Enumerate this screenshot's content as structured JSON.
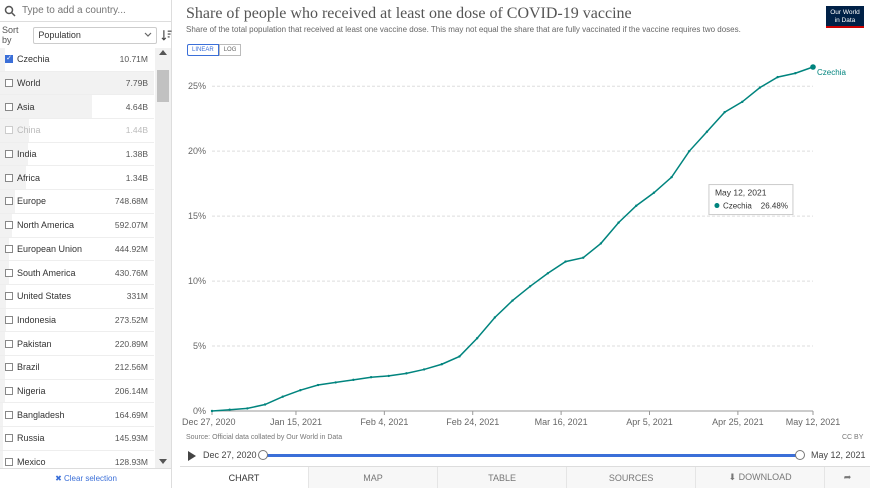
{
  "search": {
    "placeholder": "Type to add a country..."
  },
  "sort": {
    "label": "Sort by",
    "selected": "Population"
  },
  "countries": [
    {
      "name": "Czechia",
      "value": "10.71M",
      "checked": true,
      "dim": false,
      "share": 0.03
    },
    {
      "name": "World",
      "value": "7.79B",
      "checked": false,
      "dim": false,
      "share": 1.0
    },
    {
      "name": "Asia",
      "value": "4.64B",
      "checked": false,
      "dim": false,
      "share": 0.6
    },
    {
      "name": "China",
      "value": "1.44B",
      "checked": false,
      "dim": true,
      "share": 0.19
    },
    {
      "name": "India",
      "value": "1.38B",
      "checked": false,
      "dim": false,
      "share": 0.18
    },
    {
      "name": "Africa",
      "value": "1.34B",
      "checked": false,
      "dim": false,
      "share": 0.17
    },
    {
      "name": "Europe",
      "value": "748.68M",
      "checked": false,
      "dim": false,
      "share": 0.1
    },
    {
      "name": "North America",
      "value": "592.07M",
      "checked": false,
      "dim": false,
      "share": 0.08
    },
    {
      "name": "European Union",
      "value": "444.92M",
      "checked": false,
      "dim": false,
      "share": 0.06
    },
    {
      "name": "South America",
      "value": "430.76M",
      "checked": false,
      "dim": false,
      "share": 0.06
    },
    {
      "name": "United States",
      "value": "331M",
      "checked": false,
      "dim": false,
      "share": 0.04
    },
    {
      "name": "Indonesia",
      "value": "273.52M",
      "checked": false,
      "dim": false,
      "share": 0.04
    },
    {
      "name": "Pakistan",
      "value": "220.89M",
      "checked": false,
      "dim": false,
      "share": 0.03
    },
    {
      "name": "Brazil",
      "value": "212.56M",
      "checked": false,
      "dim": false,
      "share": 0.03
    },
    {
      "name": "Nigeria",
      "value": "206.14M",
      "checked": false,
      "dim": false,
      "share": 0.03
    },
    {
      "name": "Bangladesh",
      "value": "164.69M",
      "checked": false,
      "dim": false,
      "share": 0.02
    },
    {
      "name": "Russia",
      "value": "145.93M",
      "checked": false,
      "dim": false,
      "share": 0.02
    },
    {
      "name": "Mexico",
      "value": "128.93M",
      "checked": false,
      "dim": false,
      "share": 0.02
    }
  ],
  "clear_label": "✖ Clear selection",
  "header": {
    "title": "Share of people who received at least one dose of COVID-19 vaccine",
    "subtitle": "Share of the total population that received at least one vaccine dose. This may not equal the share that are fully vaccinated if the vaccine requires two doses.",
    "logo_line1": "Our World",
    "logo_line2": "in Data",
    "linear_label": "LINEAR",
    "log_label": "LOG"
  },
  "chart_data": {
    "type": "line",
    "title": "Share of people who received at least one dose of COVID-19 vaccine",
    "ylim": [
      0,
      26.48
    ],
    "yticks": [
      0,
      5,
      10,
      15,
      20,
      25
    ],
    "ytick_labels": [
      "0%",
      "5%",
      "10%",
      "15%",
      "20%",
      "25%"
    ],
    "xlim": [
      0,
      136
    ],
    "xticks": [
      0,
      19,
      39,
      59,
      79,
      99,
      119,
      136
    ],
    "xtick_labels": [
      "Dec 27, 2020",
      "Jan 15, 2021",
      "Feb 4, 2021",
      "Feb 24, 2021",
      "Mar 16, 2021",
      "Apr 5, 2021",
      "Apr 25, 2021",
      "May 12, 2021"
    ],
    "series": [
      {
        "name": "Czechia",
        "color": "#00847e",
        "x": [
          0,
          4,
          8,
          12,
          16,
          20,
          24,
          28,
          32,
          36,
          40,
          44,
          48,
          52,
          56,
          60,
          64,
          68,
          72,
          76,
          80,
          84,
          88,
          92,
          96,
          100,
          104,
          108,
          112,
          116,
          120,
          124,
          128,
          132,
          136
        ],
        "values": [
          0.0,
          0.1,
          0.2,
          0.5,
          1.1,
          1.6,
          2.0,
          2.2,
          2.4,
          2.6,
          2.7,
          2.9,
          3.2,
          3.6,
          4.2,
          5.6,
          7.2,
          8.5,
          9.6,
          10.6,
          11.5,
          11.8,
          12.9,
          14.5,
          15.8,
          16.8,
          18.0,
          20.0,
          21.5,
          23.0,
          23.8,
          24.9,
          25.7,
          26.0,
          26.48
        ]
      }
    ],
    "end_label": "Czechia",
    "tooltip": {
      "date": "May 12, 2021",
      "series": "Czechia",
      "value": "26.48%",
      "x": 112,
      "y": 17.2
    }
  },
  "footer": {
    "source": "Source: Official data collated by Our World in Data",
    "license": "CC BY"
  },
  "timeline": {
    "start": "Dec 27, 2020",
    "end": "May 12, 2021"
  },
  "tabs": [
    {
      "id": "chart",
      "label": "CHART"
    },
    {
      "id": "map",
      "label": "MAP"
    },
    {
      "id": "table",
      "label": "TABLE"
    },
    {
      "id": "sources",
      "label": "SOURCES"
    },
    {
      "id": "download",
      "label": "⬇ DOWNLOAD"
    },
    {
      "id": "share",
      "label": "➦"
    }
  ]
}
